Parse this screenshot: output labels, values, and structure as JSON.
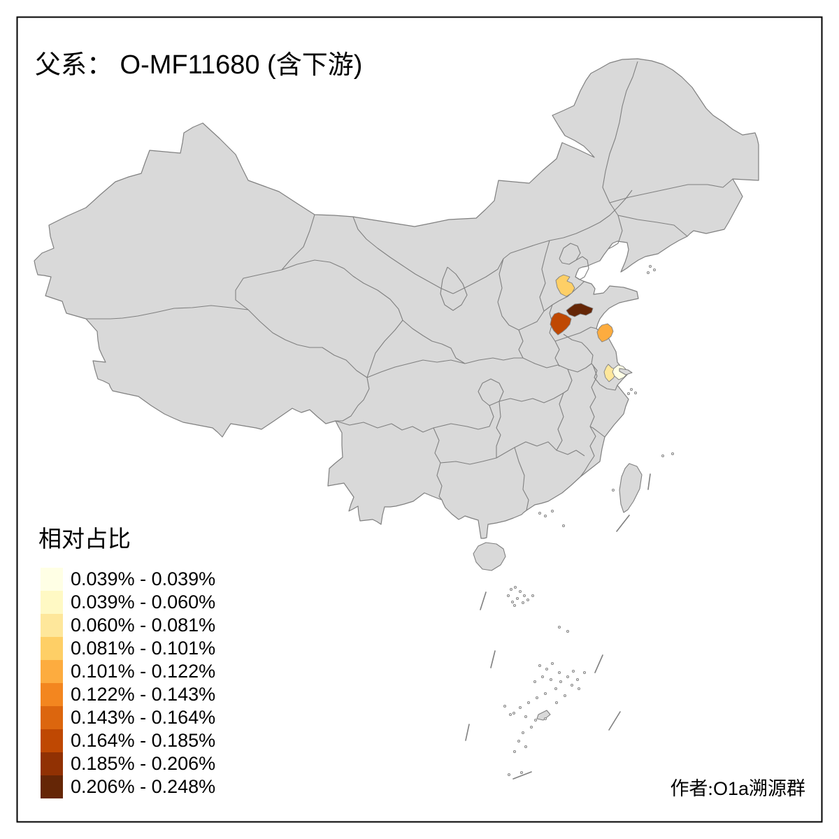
{
  "title": {
    "parts": [
      "父系：",
      " O-MF11680 (",
      "含下游",
      ")"
    ]
  },
  "legend": {
    "title": "相对占比",
    "classes": [
      {
        "range": "0.039% - 0.039%",
        "color": "#FFFFE5"
      },
      {
        "range": "0.039% - 0.060%",
        "color": "#FFF9C4"
      },
      {
        "range": "0.060% - 0.081%",
        "color": "#FEE79B"
      },
      {
        "range": "0.081% - 0.101%",
        "color": "#FECF66"
      },
      {
        "range": "0.101% - 0.122%",
        "color": "#FDAC3F"
      },
      {
        "range": "0.122% - 0.143%",
        "color": "#F3861F"
      },
      {
        "range": "0.143% - 0.164%",
        "color": "#DC660E"
      },
      {
        "range": "0.164% - 0.185%",
        "color": "#BF4802"
      },
      {
        "range": "0.185% - 0.206%",
        "color": "#913103"
      },
      {
        "range": "0.206% - 0.248%",
        "color": "#652606"
      }
    ]
  },
  "map": {
    "land_color": "#D9D9D9",
    "border_color": "#808080",
    "sea_color": "#FFFFFF",
    "frame_color": "#000000",
    "highlighted_regions": [
      {
        "id": "region-1-north",
        "range": "0.081% - 0.101%",
        "color": "#FECF66"
      },
      {
        "id": "region-2-darkest",
        "range": "0.206% - 0.248%",
        "color": "#652606"
      },
      {
        "id": "region-3-dark",
        "range": "0.164% - 0.185%",
        "color": "#BF4802"
      },
      {
        "id": "region-4-coastal",
        "range": "0.101% - 0.122%",
        "color": "#FDAC3F"
      },
      {
        "id": "region-5-pale",
        "range": "0.060% - 0.081%",
        "color": "#FEE79B"
      },
      {
        "id": "region-6-palest",
        "range": "0.039% - 0.039%",
        "color": "#FFFFE5"
      }
    ]
  },
  "attribution": {
    "parts": [
      "作者:",
      "O1a",
      "溯源群"
    ]
  }
}
